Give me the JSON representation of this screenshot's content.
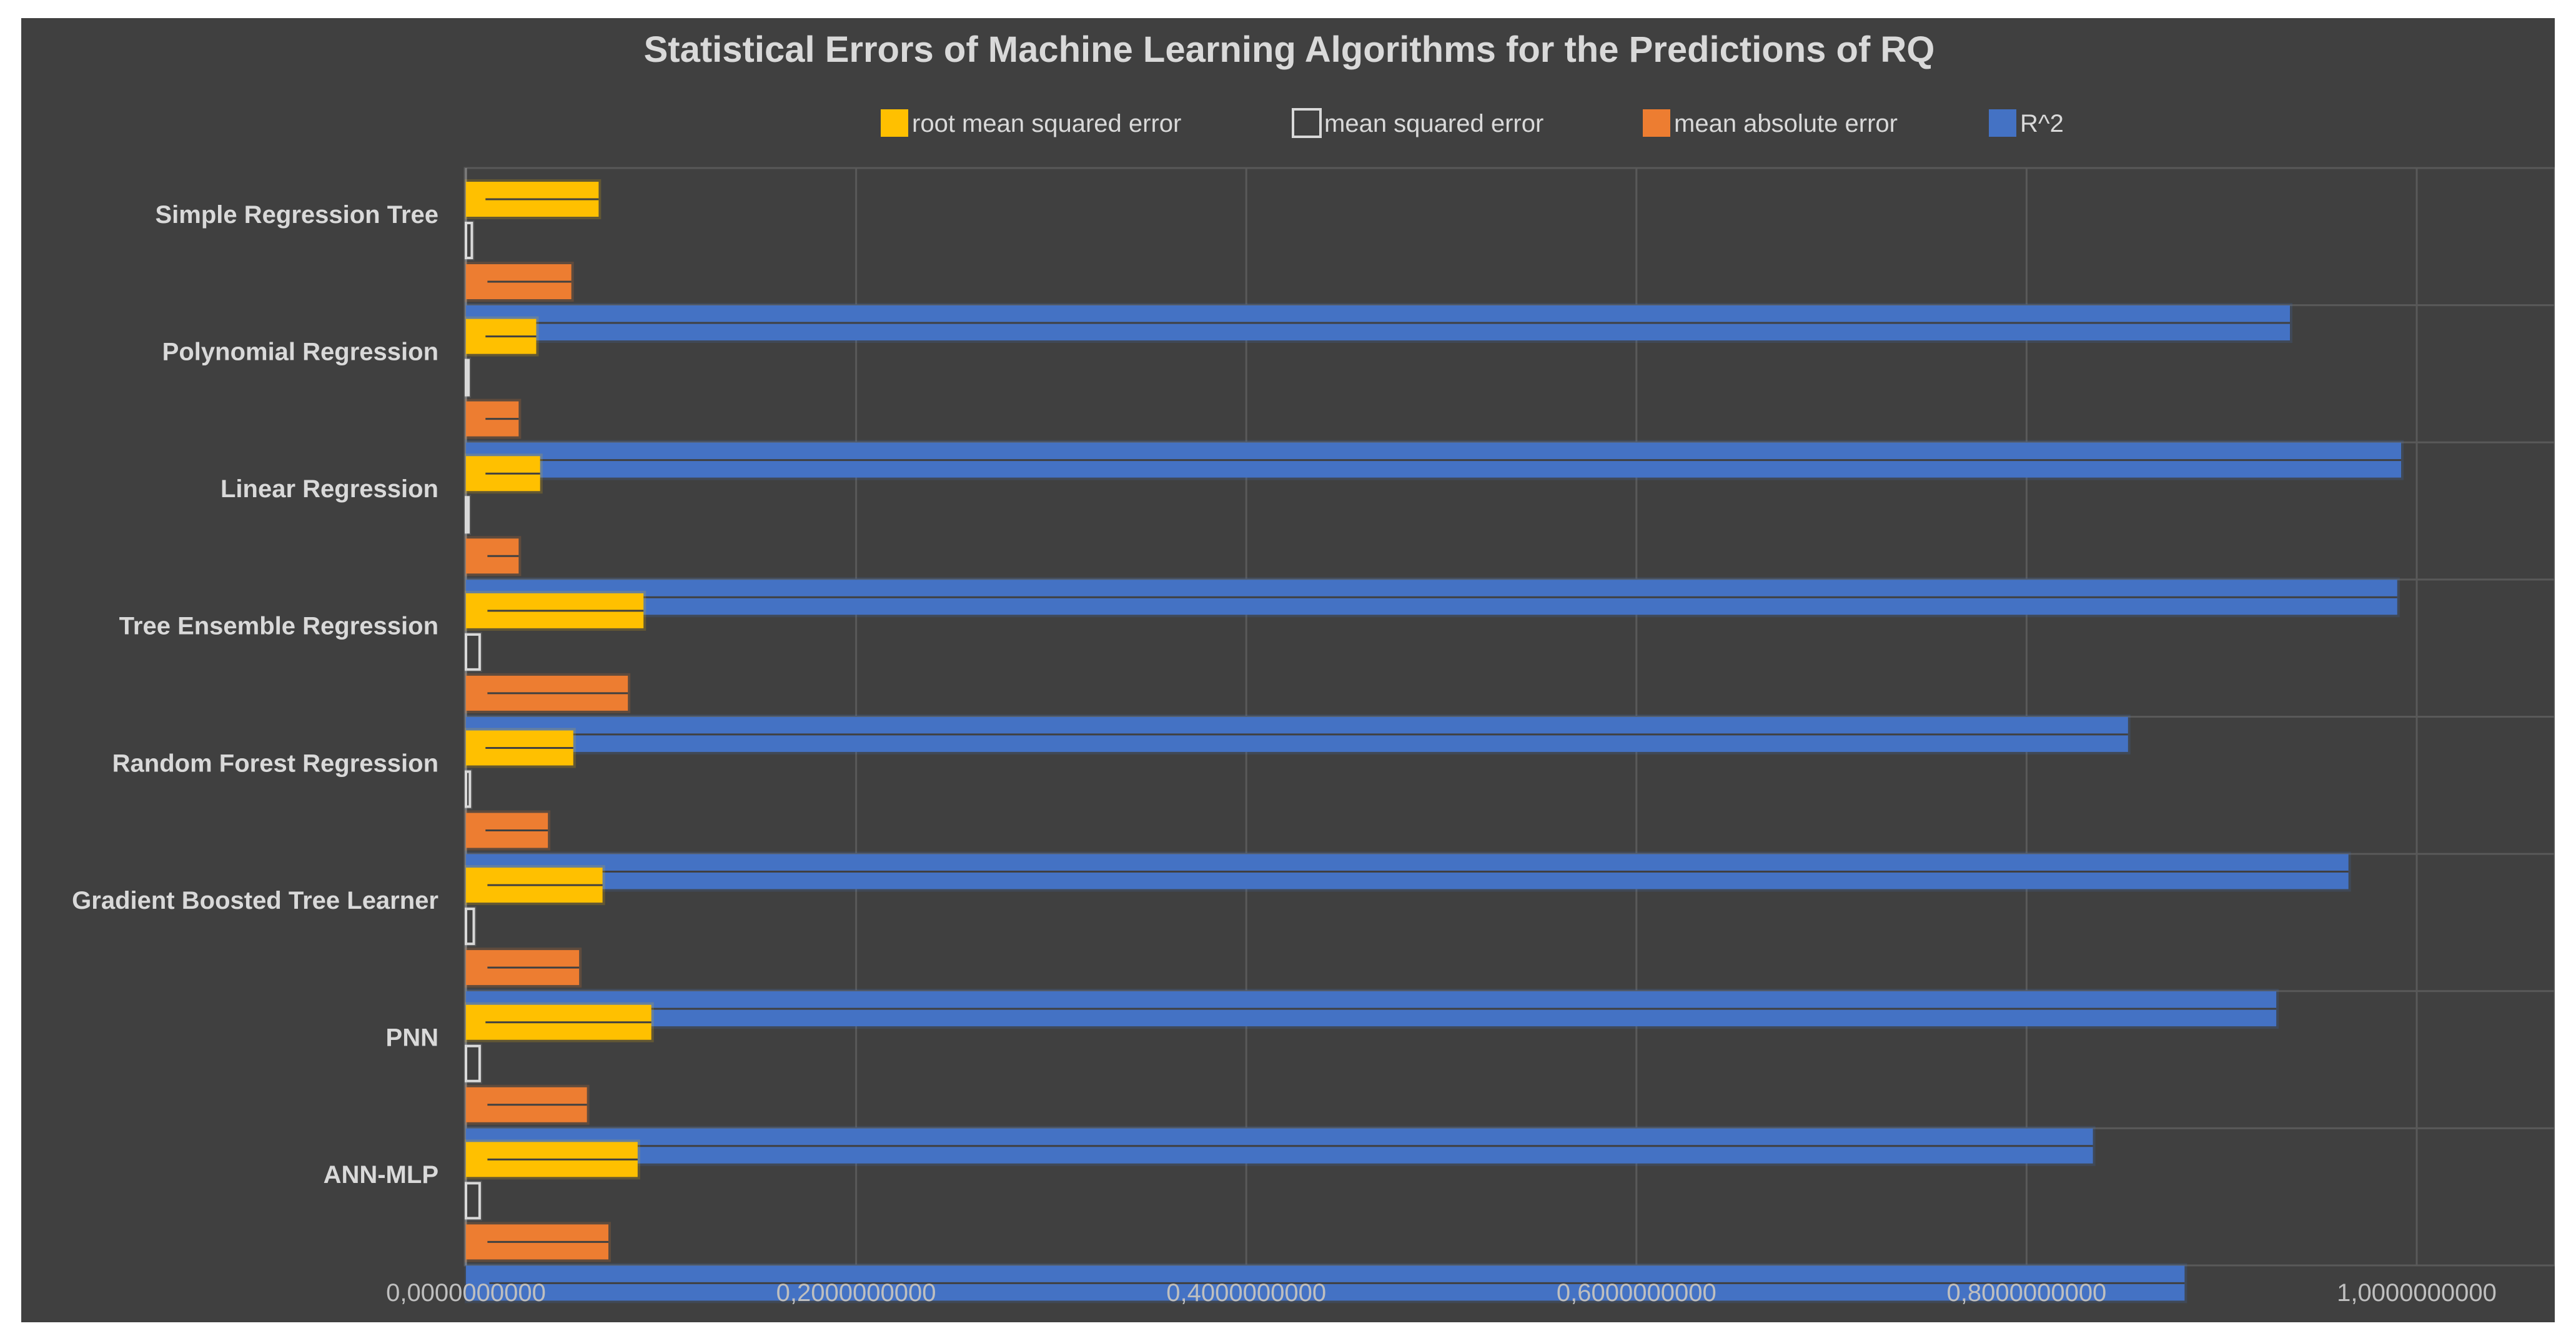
{
  "chart_data": {
    "type": "bar",
    "orientation": "horizontal",
    "title": "Statistical Errors of Machine Learning Algorithms for the Predictions of RQ",
    "categories": [
      "Simple Regression Tree",
      "Polynomial Regression",
      "Linear Regression",
      "Tree Ensemble Regression",
      "Random Forest Regression",
      "Gradient Boosted Tree Learner",
      "PNN",
      "ANN-MLP"
    ],
    "series": [
      {
        "name": "root mean squared error",
        "color": "#ffc000",
        "values": [
          0.068,
          0.036,
          0.038,
          0.091,
          0.055,
          0.07,
          0.095,
          0.088
        ],
        "error_minus": [
          0.058,
          0.026,
          0.028,
          0.08,
          0.045,
          0.059,
          0.085,
          0.077
        ],
        "error_plus": [
          0.058,
          0.026,
          0.028,
          0.08,
          0.045,
          0.059,
          0.085,
          0.077
        ]
      },
      {
        "name": "mean squared error",
        "color": "#404040",
        "values": [
          0.003,
          0.001,
          0.001,
          0.007,
          0.002,
          0.004,
          0.007,
          0.007
        ],
        "error_minus": [
          0.003,
          0.001,
          0.001,
          0.006,
          0.002,
          0.004,
          0.006,
          0.006
        ],
        "error_plus": [
          0.003,
          0.001,
          0.001,
          0.006,
          0.002,
          0.004,
          0.006,
          0.006
        ]
      },
      {
        "name": "mean absolute error",
        "color": "#ed7d31",
        "values": [
          0.054,
          0.027,
          0.027,
          0.083,
          0.042,
          0.058,
          0.062,
          0.073
        ],
        "error_minus": [
          0.043,
          0.017,
          0.016,
          0.072,
          0.032,
          0.047,
          0.051,
          0.062
        ],
        "error_plus": [
          0.043,
          0.017,
          0.016,
          0.072,
          0.032,
          0.047,
          0.051,
          0.062
        ]
      },
      {
        "name": "R^2",
        "color": "#4472c4",
        "values": [
          0.935,
          0.992,
          0.99,
          0.852,
          0.965,
          0.928,
          0.834,
          0.881
        ],
        "error_minus": [
          0.925,
          0.982,
          0.98,
          0.84,
          0.955,
          0.918,
          0.822,
          0.869
        ],
        "error_plus": [
          0.925,
          0.982,
          0.98,
          0.84,
          0.955,
          0.918,
          0.822,
          0.869
        ]
      }
    ],
    "x_ticks": [
      "0,0000000000",
      "0,2000000000",
      "0,4000000000",
      "0,6000000000",
      "0,8000000000",
      "1,0000000000"
    ],
    "xlim": [
      0,
      1.07
    ],
    "xlabel": "",
    "ylabel": "",
    "grid": true,
    "legend_position": "top"
  }
}
